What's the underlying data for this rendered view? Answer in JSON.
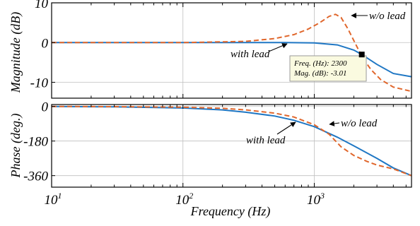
{
  "chart_data": [
    {
      "type": "line",
      "ylabel": "Magnitude (dB)",
      "xscale": "log",
      "xlim": [
        10,
        5500
      ],
      "ylim": [
        -14,
        10
      ],
      "grid": true,
      "yticks": [
        10,
        0,
        -10
      ],
      "yticklabels": [
        "10",
        "0",
        "-10"
      ],
      "series": [
        {
          "name": "with lead",
          "color": "#1f77c4",
          "dash": "solid",
          "x": [
            10,
            30,
            100,
            300,
            600,
            1000,
            1500,
            2000,
            2300,
            3000,
            4000,
            5500
          ],
          "y": [
            0,
            0,
            0,
            0,
            0,
            -0.1,
            -0.6,
            -1.9,
            -3.01,
            -5.5,
            -7.8,
            -8.6
          ]
        },
        {
          "name": "w/o lead",
          "color": "#e0662b",
          "dash": "dashed",
          "x": [
            10,
            100,
            300,
            500,
            700,
            900,
            1100,
            1300,
            1450,
            1600,
            1800,
            2000,
            2300,
            2700,
            3200,
            4000,
            5500
          ],
          "y": [
            0,
            0,
            0.3,
            1.0,
            2.0,
            3.4,
            5.0,
            6.6,
            7.1,
            6.3,
            3.5,
            0.5,
            -3.5,
            -6.8,
            -9.3,
            -11.2,
            -12.3
          ]
        }
      ],
      "annotations": [
        {
          "text": "w/o lead",
          "arrow_to": [
            1500,
            7.1
          ]
        },
        {
          "text": "with lead",
          "arrow_to": [
            900,
            -0.05
          ]
        }
      ],
      "datatip": {
        "lines": [
          "Freq. (Hz): 2300",
          "Mag. (dB): -3.01"
        ],
        "x": 2300,
        "y": -3.01,
        "marker_color": "#000000",
        "box_color": "#fafae0"
      }
    },
    {
      "type": "line",
      "ylabel": "Phase (deg.)",
      "xlabel": "Frequency (Hz)",
      "xscale": "log",
      "xlim": [
        10,
        5500
      ],
      "ylim": [
        -420,
        10
      ],
      "grid": true,
      "yticks": [
        0,
        -180,
        -360
      ],
      "yticklabels": [
        "0",
        "-180",
        "-360"
      ],
      "xticks": [
        10,
        100,
        1000
      ],
      "xticklabels": [
        {
          "base": "10",
          "exp": "1"
        },
        {
          "base": "10",
          "exp": "2"
        },
        {
          "base": "10",
          "exp": "3"
        }
      ],
      "series": [
        {
          "name": "with lead",
          "color": "#1f77c4",
          "dash": "solid",
          "x": [
            10,
            30,
            100,
            200,
            300,
            500,
            700,
            1000,
            1500,
            2000,
            3000,
            4000,
            5500
          ],
          "y": [
            0,
            -2,
            -8,
            -18,
            -30,
            -50,
            -72,
            -105,
            -160,
            -205,
            -270,
            -320,
            -360
          ]
        },
        {
          "name": "w/o lead",
          "color": "#e0662b",
          "dash": "dashed",
          "x": [
            10,
            30,
            100,
            200,
            300,
            500,
            700,
            1000,
            1300,
            1600,
            2000,
            2500,
            3000,
            4000,
            5500
          ],
          "y": [
            0,
            -1,
            -4,
            -10,
            -18,
            -35,
            -55,
            -95,
            -145,
            -210,
            -255,
            -285,
            -305,
            -325,
            -360
          ]
        }
      ],
      "annotations": [
        {
          "text": "w/o lead",
          "arrow_to": [
            1050,
            -95
          ]
        },
        {
          "text": "with lead",
          "arrow_to": [
            780,
            -88
          ]
        }
      ]
    }
  ]
}
